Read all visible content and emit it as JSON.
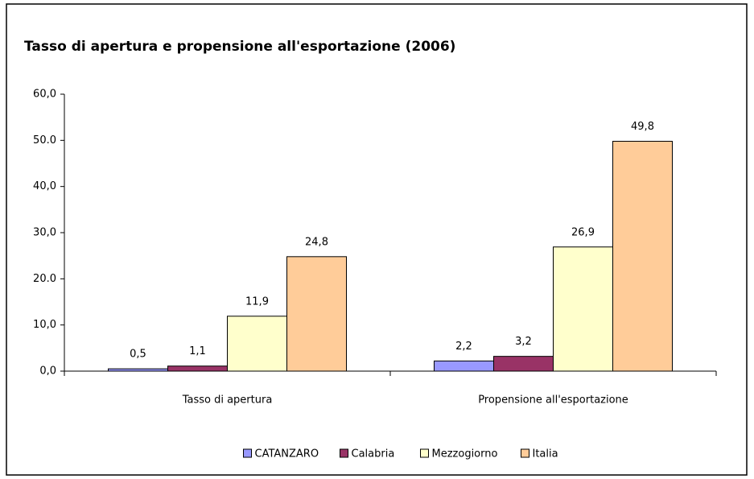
{
  "chart_data": {
    "type": "bar",
    "title": "Tasso di apertura e propensione all'esportazione (2006)",
    "categories": [
      "Tasso di apertura",
      "Propensione all'esportazione"
    ],
    "series": [
      {
        "name": "CATANZARO",
        "color": "#9999ff",
        "values": [
          0.5,
          2.2
        ],
        "value_labels": [
          "0,5",
          "2,2"
        ]
      },
      {
        "name": "Calabria",
        "color": "#993366",
        "values": [
          1.1,
          3.2
        ],
        "value_labels": [
          "1,1",
          "3,2"
        ]
      },
      {
        "name": "Mezzogiorno",
        "color": "#ffffcc",
        "values": [
          11.9,
          26.9
        ],
        "value_labels": [
          "11,9",
          "26,9"
        ]
      },
      {
        "name": "Italia",
        "color": "#ffcc99",
        "values": [
          24.8,
          49.8
        ],
        "value_labels": [
          "24,8",
          "49,8"
        ]
      }
    ],
    "ylim": [
      0,
      60
    ],
    "yticks": [
      {
        "value": 0,
        "label": "0,0"
      },
      {
        "value": 10,
        "label": "10,0"
      },
      {
        "value": 20,
        "label": "20.0"
      },
      {
        "value": 30,
        "label": "30,0"
      },
      {
        "value": 40,
        "label": "40,0"
      },
      {
        "value": 50,
        "label": "50.0"
      },
      {
        "value": 60,
        "label": "60,0"
      }
    ],
    "legend": "bottom"
  }
}
